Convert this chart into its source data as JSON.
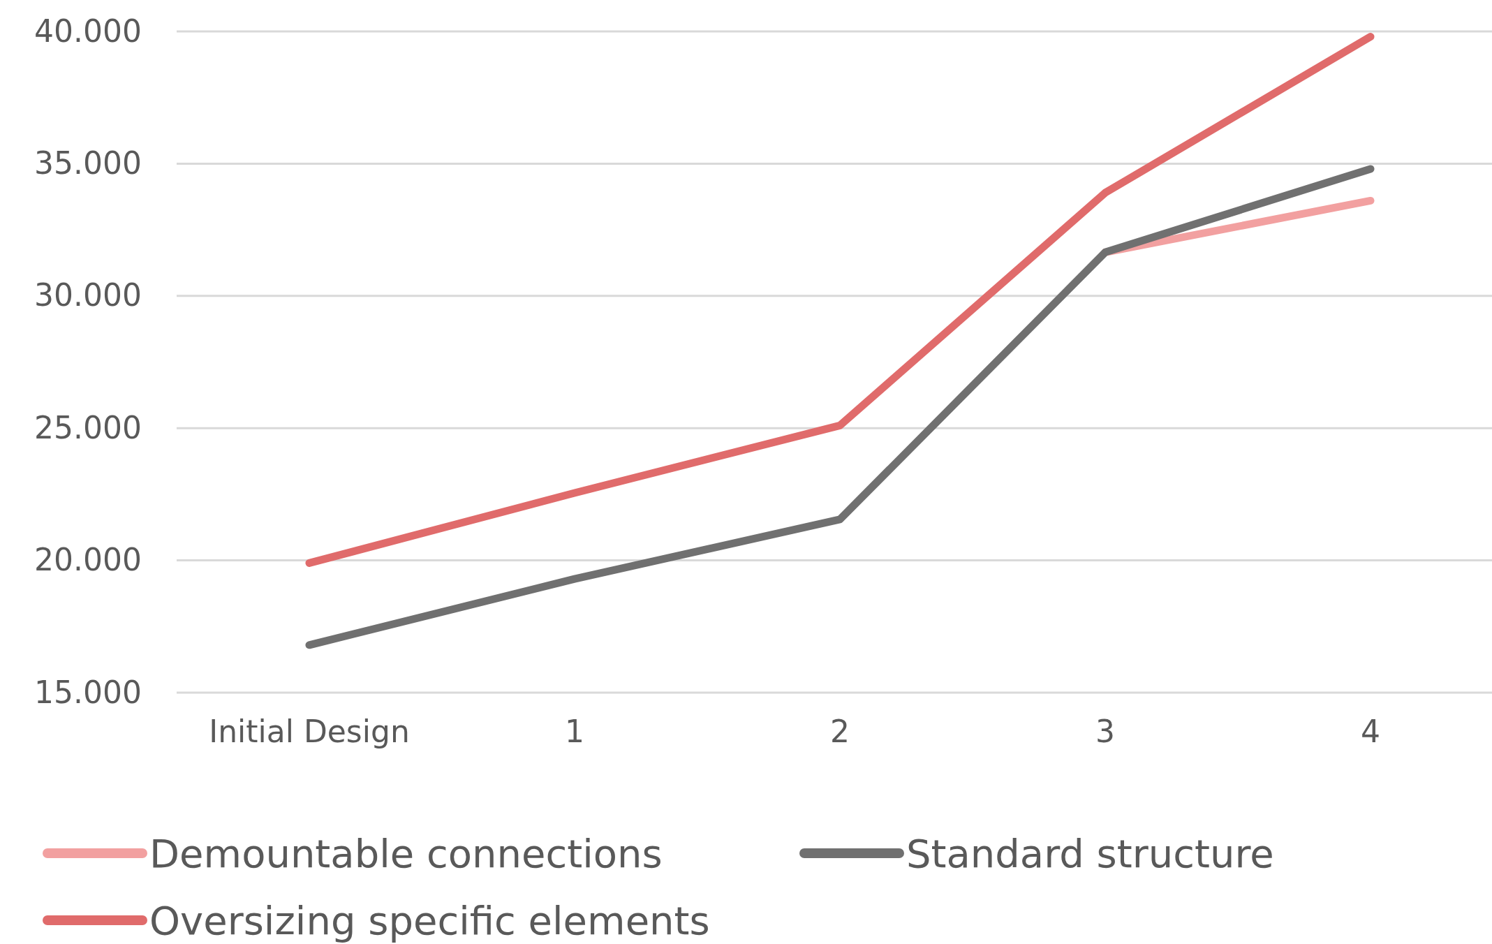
{
  "chart_data": {
    "type": "line",
    "categories": [
      "Initial Design",
      "1",
      "2",
      "3",
      "4"
    ],
    "series": [
      {
        "name": "Demountable connections",
        "color": "#f2a0a0",
        "values": [
          null,
          null,
          null,
          31.65,
          33.6
        ]
      },
      {
        "name": "Standard structure",
        "color": "#707070",
        "values": [
          16.8,
          19.3,
          21.55,
          31.65,
          34.8
        ]
      },
      {
        "name": "Oversizing specific elements",
        "color": "#e06b6b",
        "values": [
          19.9,
          22.55,
          25.1,
          33.9,
          39.8
        ]
      }
    ],
    "ylim": [
      15,
      40
    ],
    "yticks": [
      {
        "value": 15,
        "label": "15.000"
      },
      {
        "value": 20,
        "label": "20.000"
      },
      {
        "value": 25,
        "label": "25.000"
      },
      {
        "value": 30,
        "label": "30.000"
      },
      {
        "value": 35,
        "label": "35.000"
      },
      {
        "value": 40,
        "label": "40.000"
      }
    ],
    "grid": "y",
    "legend": "bottom",
    "marker": "none",
    "line_style": "solid"
  }
}
